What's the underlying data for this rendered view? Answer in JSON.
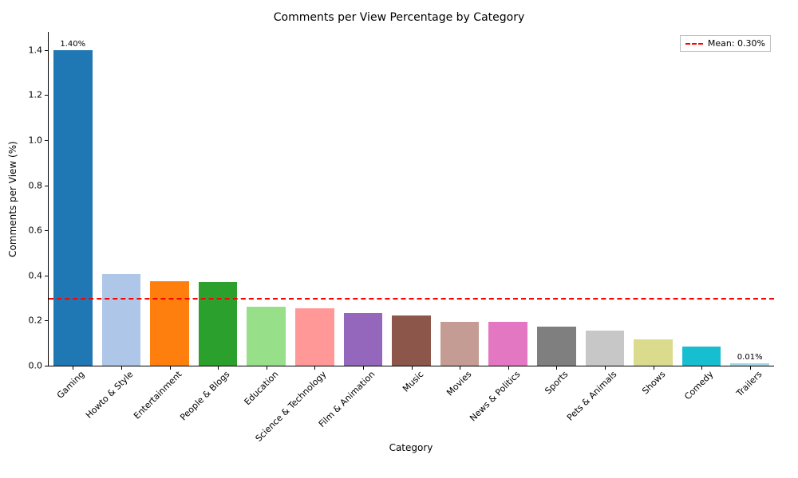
{
  "title": "Comments per View Percentage by Category",
  "xlabel": "Category",
  "ylabel": "Comments per View (%)",
  "ylim": [
    0.0,
    1.48
  ],
  "ytick_step": 0.2,
  "ytick_decimals": 1,
  "bar_width": 0.8,
  "background_color": "#ffffff",
  "mean": {
    "value": 0.3,
    "color": "#ff0000",
    "width": 2,
    "label": "Mean: 0.30%"
  },
  "value_label_decimals": 2,
  "label_fontsize": 12,
  "tick_fontsize": 11,
  "title_fontsize": 14,
  "bars": [
    {
      "category": "Gaming",
      "value": 1.4,
      "color": "#1f77b4",
      "show_value": true
    },
    {
      "category": "Howto & Style",
      "value": 0.405,
      "color": "#aec7e8",
      "show_value": false
    },
    {
      "category": "Entertainment",
      "value": 0.373,
      "color": "#ff7f0e",
      "show_value": false
    },
    {
      "category": "People & Blogs",
      "value": 0.37,
      "color": "#2ca02c",
      "show_value": false
    },
    {
      "category": "Education",
      "value": 0.262,
      "color": "#98df8a",
      "show_value": false
    },
    {
      "category": "Science & Technology",
      "value": 0.254,
      "color": "#ff9896",
      "show_value": false
    },
    {
      "category": "Film & Animation",
      "value": 0.232,
      "color": "#9467bd",
      "show_value": false
    },
    {
      "category": "Music",
      "value": 0.223,
      "color": "#8c564b",
      "show_value": false
    },
    {
      "category": "Movies",
      "value": 0.194,
      "color": "#c49c94",
      "show_value": false
    },
    {
      "category": "News & Politics",
      "value": 0.193,
      "color": "#e377c2",
      "show_value": false
    },
    {
      "category": "Sports",
      "value": 0.173,
      "color": "#7f7f7f",
      "show_value": false
    },
    {
      "category": "Pets & Animals",
      "value": 0.156,
      "color": "#c7c7c7",
      "show_value": false
    },
    {
      "category": "Shows",
      "value": 0.118,
      "color": "#dbdb8d",
      "show_value": false
    },
    {
      "category": "Comedy",
      "value": 0.085,
      "color": "#17becf",
      "show_value": false
    },
    {
      "category": "Trailers",
      "value": 0.01,
      "color": "#9edae5",
      "show_value": true
    }
  ]
}
